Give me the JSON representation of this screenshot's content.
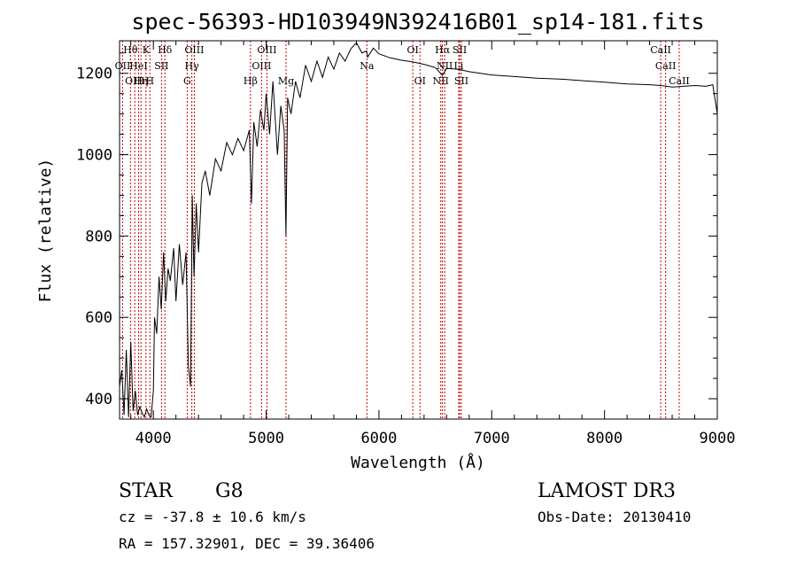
{
  "chart_data": {
    "type": "line",
    "title": "spec-56393-HD103949N392416B01_sp14-181.fits",
    "xlabel": "Wavelength (Å)",
    "ylabel": "Flux (relative)",
    "xlim": [
      3700,
      9000
    ],
    "ylim": [
      350,
      1280
    ],
    "x_ticks": [
      "4000",
      "5000",
      "6000",
      "7000",
      "8000",
      "9000"
    ],
    "y_ticks": [
      "400",
      "600",
      "800",
      "1000",
      "1200"
    ],
    "grid": false,
    "legend": "none",
    "series": [
      {
        "points": [
          [
            3700,
            430
          ],
          [
            3720,
            470
          ],
          [
            3740,
            360
          ],
          [
            3760,
            520
          ],
          [
            3780,
            355
          ],
          [
            3800,
            540
          ],
          [
            3820,
            370
          ],
          [
            3840,
            420
          ],
          [
            3860,
            360
          ],
          [
            3880,
            380
          ],
          [
            3900,
            365
          ],
          [
            3920,
            355
          ],
          [
            3940,
            375
          ],
          [
            3960,
            360
          ],
          [
            3980,
            355
          ],
          [
            4000,
            420
          ],
          [
            4010,
            600
          ],
          [
            4030,
            560
          ],
          [
            4050,
            700
          ],
          [
            4070,
            620
          ],
          [
            4090,
            760
          ],
          [
            4110,
            640
          ],
          [
            4130,
            720
          ],
          [
            4150,
            690
          ],
          [
            4180,
            770
          ],
          [
            4200,
            640
          ],
          [
            4230,
            780
          ],
          [
            4260,
            680
          ],
          [
            4290,
            760
          ],
          [
            4310,
            480
          ],
          [
            4330,
            430
          ],
          [
            4345,
            900
          ],
          [
            4360,
            700
          ],
          [
            4380,
            880
          ],
          [
            4400,
            760
          ],
          [
            4430,
            930
          ],
          [
            4460,
            960
          ],
          [
            4500,
            900
          ],
          [
            4550,
            990
          ],
          [
            4600,
            960
          ],
          [
            4650,
            1030
          ],
          [
            4700,
            1000
          ],
          [
            4750,
            1040
          ],
          [
            4800,
            1010
          ],
          [
            4850,
            1060
          ],
          [
            4870,
            880
          ],
          [
            4890,
            1080
          ],
          [
            4920,
            1020
          ],
          [
            4950,
            1110
          ],
          [
            4980,
            1060
          ],
          [
            5000,
            1150
          ],
          [
            5030,
            1050
          ],
          [
            5060,
            1180
          ],
          [
            5100,
            1000
          ],
          [
            5130,
            1120
          ],
          [
            5160,
            1060
          ],
          [
            5175,
            800
          ],
          [
            5190,
            1140
          ],
          [
            5220,
            1100
          ],
          [
            5260,
            1180
          ],
          [
            5300,
            1140
          ],
          [
            5350,
            1220
          ],
          [
            5400,
            1180
          ],
          [
            5450,
            1230
          ],
          [
            5500,
            1190
          ],
          [
            5550,
            1240
          ],
          [
            5600,
            1210
          ],
          [
            5650,
            1250
          ],
          [
            5700,
            1230
          ],
          [
            5750,
            1260
          ],
          [
            5800,
            1275
          ],
          [
            5850,
            1250
          ],
          [
            5890,
            1255
          ],
          [
            5900,
            1240
          ],
          [
            5950,
            1262
          ],
          [
            6000,
            1248
          ],
          [
            6100,
            1238
          ],
          [
            6200,
            1232
          ],
          [
            6300,
            1228
          ],
          [
            6400,
            1222
          ],
          [
            6500,
            1214
          ],
          [
            6563,
            1195
          ],
          [
            6600,
            1212
          ],
          [
            6700,
            1210
          ],
          [
            6800,
            1204
          ],
          [
            6900,
            1200
          ],
          [
            7000,
            1196
          ],
          [
            7200,
            1192
          ],
          [
            7400,
            1188
          ],
          [
            7600,
            1186
          ],
          [
            7800,
            1182
          ],
          [
            8000,
            1178
          ],
          [
            8200,
            1174
          ],
          [
            8400,
            1172
          ],
          [
            8500,
            1170
          ],
          [
            8600,
            1166
          ],
          [
            8700,
            1168
          ],
          [
            8800,
            1170
          ],
          [
            8900,
            1168
          ],
          [
            8960,
            1172
          ],
          [
            9000,
            1100
          ]
        ]
      }
    ],
    "spectral_lines": [
      {
        "x": 3727,
        "row": 1,
        "label": "OII"
      },
      {
        "x": 3797,
        "row": 0,
        "label": "Hθ"
      },
      {
        "x": 3835,
        "row": 2,
        "label": "OIII"
      },
      {
        "x": 3869,
        "row": 1,
        "label": "HeI"
      },
      {
        "x": 3890,
        "row": 2,
        "label": "Hη"
      },
      {
        "x": 3934,
        "row": 0,
        "label": "K"
      },
      {
        "x": 3969,
        "row": 2,
        "label": "H"
      },
      {
        "x": 4072,
        "row": 1,
        "label": "SII"
      },
      {
        "x": 4102,
        "row": 0,
        "label": "Hδ"
      },
      {
        "x": 4300,
        "row": 2,
        "label": "G"
      },
      {
        "x": 4341,
        "row": 1,
        "label": "Hγ"
      },
      {
        "x": 4363,
        "row": 0,
        "label": "OIII"
      },
      {
        "x": 4861,
        "row": 2,
        "label": "Hβ"
      },
      {
        "x": 4959,
        "row": 1,
        "label": "OIII"
      },
      {
        "x": 5007,
        "row": 0,
        "label": "OIII"
      },
      {
        "x": 5176,
        "row": 2,
        "label": "Mg"
      },
      {
        "x": 5893,
        "row": 1,
        "label": "Na"
      },
      {
        "x": 6300,
        "row": 0,
        "label": "OI"
      },
      {
        "x": 6364,
        "row": 2,
        "label": "OI"
      },
      {
        "x": 6548,
        "row": 2,
        "label": "NII"
      },
      {
        "x": 6563,
        "row": 0,
        "label": "Hα"
      },
      {
        "x": 6583,
        "row": 1,
        "label": "NII"
      },
      {
        "x": 6707,
        "row": 1,
        "label": "Li"
      },
      {
        "x": 6716,
        "row": 0,
        "label": "SII"
      },
      {
        "x": 6731,
        "row": 2,
        "label": "SII"
      },
      {
        "x": 8498,
        "row": 0,
        "label": "CaII"
      },
      {
        "x": 8542,
        "row": 1,
        "label": "CaII"
      },
      {
        "x": 8662,
        "row": 2,
        "label": "CaII"
      }
    ],
    "line_color": "#cc0000"
  },
  "info": {
    "class": "STAR",
    "subclass": "G8",
    "survey": "LAMOST DR3",
    "cz": "cz = -37.8 ± 10.6 km/s",
    "obs_date": "Obs-Date: 20130410",
    "radec": "RA = 157.32901, DEC =  39.36406"
  }
}
